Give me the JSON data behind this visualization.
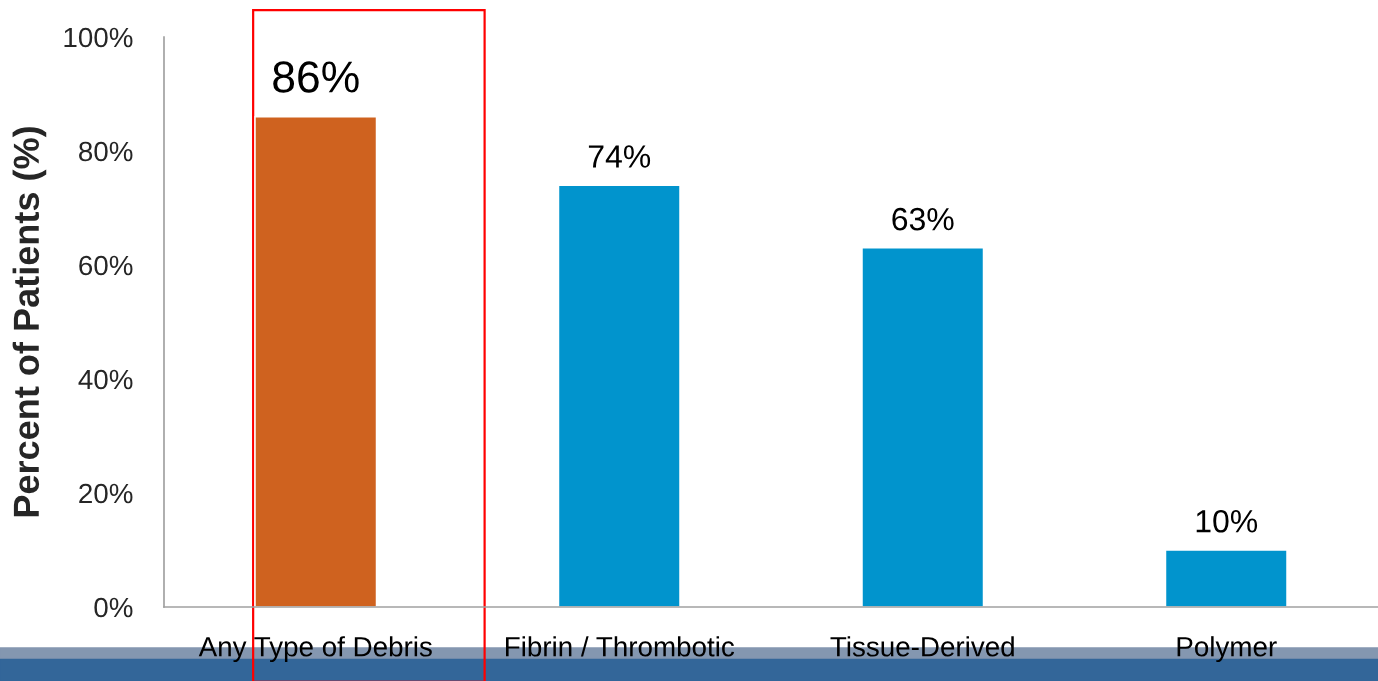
{
  "chart_data": {
    "type": "bar",
    "categories": [
      "Any Type of Debris",
      "Fibrin / Thrombotic",
      "Tissue-Derived",
      "Polymer"
    ],
    "values": [
      86,
      74,
      63,
      10
    ],
    "colors": [
      "#cf621f",
      "#0194cd",
      "#0194cd",
      "#0194cd"
    ],
    "value_labels": [
      "86%",
      "74%",
      "63%",
      "10%"
    ],
    "ylabel": "Percent of Patients (%)",
    "ylim": [
      0,
      100
    ],
    "yticks": [
      {
        "value": 0,
        "label": "0%"
      },
      {
        "value": 20,
        "label": "20%"
      },
      {
        "value": 40,
        "label": "40%"
      },
      {
        "value": 60,
        "label": "60%"
      },
      {
        "value": 80,
        "label": "80%"
      },
      {
        "value": 100,
        "label": "100%"
      }
    ],
    "grid": false
  }
}
